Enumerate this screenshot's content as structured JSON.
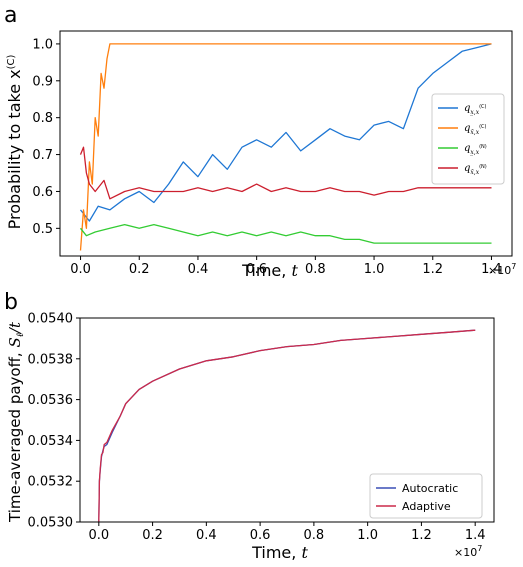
{
  "panels": {
    "a": {
      "letter": "a",
      "ylabel": "Probability to take x",
      "ylabel_sup": "(C)",
      "xlabel": "Time,",
      "xlabel_var": "t",
      "x_multiplier": "×10",
      "x_multiplier_exp": "7"
    },
    "b": {
      "letter": "b",
      "ylabel": "Time-averaged payoff,",
      "ylabel_var": "S",
      "ylabel_sub": "ℓ",
      "ylabel_tail": "/t",
      "xlabel": "Time,",
      "xlabel_var": "t",
      "x_multiplier": "×10",
      "x_multiplier_exp": "7"
    }
  },
  "chart_data": [
    {
      "type": "line",
      "panel": "a",
      "xlim": [
        -0.07,
        1.47
      ],
      "ylim": [
        0.425,
        1.035
      ],
      "xticks": [
        0.0,
        0.2,
        0.4,
        0.6,
        0.8,
        1.0,
        1.2,
        1.4
      ],
      "xtick_labels": [
        "0.0",
        "0.2",
        "0.4",
        "0.6",
        "0.8",
        "1.0",
        "1.2",
        "1.4"
      ],
      "yticks": [
        0.5,
        0.6,
        0.7,
        0.8,
        0.9,
        1.0
      ],
      "ytick_labels": [
        "0.5",
        "0.6",
        "0.7",
        "0.8",
        "0.9",
        "1.0"
      ],
      "grid": false,
      "legend_position": "right",
      "series": [
        {
          "name": "q_{x̲,x(C)}",
          "legend_main": "q",
          "legend_sub": "x̲,x",
          "legend_sup": "(C)",
          "color": "#1f77d4",
          "x": [
            0.0,
            0.03,
            0.06,
            0.1,
            0.15,
            0.2,
            0.25,
            0.3,
            0.35,
            0.4,
            0.45,
            0.5,
            0.55,
            0.6,
            0.65,
            0.7,
            0.75,
            0.8,
            0.85,
            0.9,
            0.95,
            1.0,
            1.05,
            1.1,
            1.15,
            1.2,
            1.25,
            1.3,
            1.35,
            1.4
          ],
          "y": [
            0.55,
            0.52,
            0.56,
            0.55,
            0.58,
            0.6,
            0.57,
            0.62,
            0.68,
            0.64,
            0.7,
            0.66,
            0.72,
            0.74,
            0.72,
            0.76,
            0.71,
            0.74,
            0.77,
            0.75,
            0.74,
            0.78,
            0.79,
            0.77,
            0.88,
            0.92,
            0.95,
            0.98,
            0.99,
            1.0
          ]
        },
        {
          "name": "q_{x̄,x(C)}",
          "legend_main": "q",
          "legend_sub": "x̄,x",
          "legend_sup": "(C)",
          "color": "#ff7f0e",
          "x": [
            0.0,
            0.01,
            0.02,
            0.03,
            0.04,
            0.05,
            0.06,
            0.07,
            0.08,
            0.09,
            0.1,
            0.2,
            0.4,
            0.6,
            0.8,
            1.0,
            1.2,
            1.4
          ],
          "y": [
            0.44,
            0.55,
            0.5,
            0.68,
            0.62,
            0.8,
            0.75,
            0.92,
            0.88,
            0.96,
            1.0,
            1.0,
            1.0,
            1.0,
            1.0,
            1.0,
            1.0,
            1.0
          ]
        },
        {
          "name": "q_{x̲,x(N)}",
          "legend_main": "q",
          "legend_sub": "x̲,x",
          "legend_sup": "(N)",
          "color": "#33cc33",
          "x": [
            0.0,
            0.02,
            0.05,
            0.1,
            0.15,
            0.2,
            0.25,
            0.3,
            0.35,
            0.4,
            0.45,
            0.5,
            0.55,
            0.6,
            0.65,
            0.7,
            0.75,
            0.8,
            0.85,
            0.9,
            0.95,
            1.0,
            1.1,
            1.2,
            1.3,
            1.4
          ],
          "y": [
            0.5,
            0.48,
            0.49,
            0.5,
            0.51,
            0.5,
            0.51,
            0.5,
            0.49,
            0.48,
            0.49,
            0.48,
            0.49,
            0.48,
            0.49,
            0.48,
            0.49,
            0.48,
            0.48,
            0.47,
            0.47,
            0.46,
            0.46,
            0.46,
            0.46,
            0.46
          ]
        },
        {
          "name": "q_{x̄,x(N)}",
          "legend_main": "q",
          "legend_sub": "x̄,x",
          "legend_sup": "(N)",
          "color": "#cc1f2e",
          "x": [
            0.0,
            0.01,
            0.02,
            0.03,
            0.05,
            0.08,
            0.1,
            0.15,
            0.2,
            0.25,
            0.3,
            0.35,
            0.4,
            0.45,
            0.5,
            0.55,
            0.6,
            0.65,
            0.7,
            0.75,
            0.8,
            0.85,
            0.9,
            0.95,
            1.0,
            1.05,
            1.1,
            1.15,
            1.2,
            1.3,
            1.4
          ],
          "y": [
            0.7,
            0.72,
            0.65,
            0.62,
            0.6,
            0.63,
            0.58,
            0.6,
            0.61,
            0.6,
            0.6,
            0.6,
            0.61,
            0.6,
            0.61,
            0.6,
            0.62,
            0.6,
            0.61,
            0.6,
            0.6,
            0.61,
            0.6,
            0.6,
            0.59,
            0.6,
            0.6,
            0.61,
            0.61,
            0.61,
            0.61
          ]
        }
      ]
    },
    {
      "type": "line",
      "panel": "b",
      "xlim": [
        -0.07,
        1.47
      ],
      "ylim": [
        0.053,
        0.054
      ],
      "xticks": [
        0.0,
        0.2,
        0.4,
        0.6,
        0.8,
        1.0,
        1.2,
        1.4
      ],
      "xtick_labels": [
        "0.0",
        "0.2",
        "0.4",
        "0.6",
        "0.8",
        "1.0",
        "1.2",
        "1.4"
      ],
      "yticks": [
        0.053,
        0.0532,
        0.0534,
        0.0536,
        0.0538,
        0.054
      ],
      "ytick_labels": [
        "0.0530",
        "0.0532",
        "0.0534",
        "0.0536",
        "0.0538",
        "0.0540"
      ],
      "grid": false,
      "legend_position": "lower right",
      "series": [
        {
          "name": "Autocratic",
          "color": "#3a4fb5",
          "x": [
            0.0,
            0.002,
            0.005,
            0.01,
            0.015,
            0.02,
            0.03,
            0.05,
            0.08,
            0.1,
            0.15,
            0.2,
            0.3,
            0.4,
            0.5,
            0.6,
            0.7,
            0.8,
            0.9,
            1.0,
            1.1,
            1.2,
            1.3,
            1.4
          ],
          "y": [
            0.053,
            0.0532,
            0.05325,
            0.05332,
            0.05335,
            0.05337,
            0.05338,
            0.05344,
            0.05352,
            0.05358,
            0.05365,
            0.05369,
            0.05375,
            0.05379,
            0.05381,
            0.05384,
            0.05386,
            0.05387,
            0.05389,
            0.0539,
            0.05391,
            0.05392,
            0.05393,
            0.05394
          ]
        },
        {
          "name": "Adaptive",
          "color": "#cc2a4a",
          "x": [
            0.0,
            0.002,
            0.005,
            0.01,
            0.015,
            0.02,
            0.03,
            0.05,
            0.08,
            0.1,
            0.15,
            0.2,
            0.3,
            0.4,
            0.5,
            0.6,
            0.7,
            0.8,
            0.9,
            1.0,
            1.1,
            1.2,
            1.3,
            1.4
          ],
          "y": [
            0.053,
            0.0532,
            0.05326,
            0.05333,
            0.05334,
            0.05338,
            0.05339,
            0.05345,
            0.05352,
            0.05358,
            0.05365,
            0.05369,
            0.05375,
            0.05379,
            0.05381,
            0.05384,
            0.05386,
            0.05387,
            0.05389,
            0.0539,
            0.05391,
            0.05392,
            0.05393,
            0.05394
          ]
        }
      ]
    }
  ]
}
